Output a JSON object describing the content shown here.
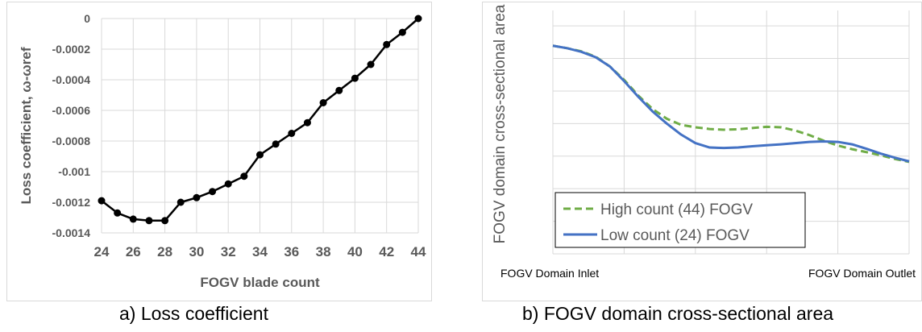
{
  "chart_data": [
    {
      "type": "line",
      "xlabel": "FOGV blade count",
      "ylabel": "Loss coefficient, ω-ωref",
      "xlim": [
        24,
        44
      ],
      "ylim": [
        -0.0014,
        0
      ],
      "xticks": [
        24,
        26,
        28,
        30,
        32,
        34,
        36,
        38,
        40,
        42,
        44
      ],
      "xtick_labels": [
        "24",
        "26",
        "28",
        "30",
        "32",
        "34",
        "36",
        "38",
        "40",
        "42",
        "44"
      ],
      "yticks": [
        0,
        -0.0002,
        -0.0004,
        -0.0006,
        -0.0008,
        -0.001,
        -0.0012,
        -0.0014
      ],
      "ytick_labels": [
        "0",
        "-0.0002",
        "-0.0004",
        "-0.0006",
        "-0.0008",
        "-0.001",
        "-0.0012",
        "-0.0014"
      ],
      "grid": true,
      "color": "#000000",
      "series": [
        {
          "x": [
            24,
            25,
            26,
            27,
            28,
            29,
            30,
            31,
            32,
            33,
            34,
            35,
            36,
            37,
            38,
            39,
            40,
            41,
            42,
            43,
            44
          ],
          "y": [
            -0.00119,
            -0.00127,
            -0.00131,
            -0.00132,
            -0.00132,
            -0.0012,
            -0.00117,
            -0.00113,
            -0.00108,
            -0.00103,
            -0.00089,
            -0.00082,
            -0.00075,
            -0.00068,
            -0.00055,
            -0.00047,
            -0.00039,
            -0.0003,
            -0.00017,
            -9e-05,
            0.0
          ]
        }
      ]
    },
    {
      "type": "line",
      "ylabel": "FOGV domain cross-sectional area",
      "xtick_labels": [
        "FOGV Domain Inlet",
        "FOGV Domain Outlet"
      ],
      "grid": true,
      "legend_position": "bottom-left",
      "series": [
        {
          "name": "High count (44) FOGV",
          "color": "#70ad47",
          "style": "dashed",
          "x": [
            0,
            0.04,
            0.08,
            0.12,
            0.16,
            0.2,
            0.24,
            0.28,
            0.32,
            0.36,
            0.4,
            0.44,
            0.48,
            0.52,
            0.56,
            0.6,
            0.64,
            0.68,
            0.72,
            0.76,
            0.8,
            0.84,
            0.88,
            0.92,
            0.96,
            1.0
          ],
          "y": [
            0.855,
            0.845,
            0.832,
            0.81,
            0.77,
            0.715,
            0.65,
            0.595,
            0.555,
            0.53,
            0.52,
            0.513,
            0.51,
            0.512,
            0.517,
            0.522,
            0.52,
            0.507,
            0.488,
            0.465,
            0.445,
            0.43,
            0.418,
            0.405,
            0.39,
            0.378
          ]
        },
        {
          "name": "Low count (24) FOGV",
          "color": "#4472c4",
          "style": "solid",
          "x": [
            0,
            0.04,
            0.08,
            0.12,
            0.16,
            0.2,
            0.24,
            0.28,
            0.32,
            0.36,
            0.4,
            0.44,
            0.48,
            0.52,
            0.56,
            0.6,
            0.64,
            0.68,
            0.72,
            0.76,
            0.8,
            0.84,
            0.88,
            0.92,
            0.96,
            1.0
          ],
          "y": [
            0.855,
            0.845,
            0.83,
            0.808,
            0.77,
            0.71,
            0.645,
            0.585,
            0.535,
            0.49,
            0.455,
            0.437,
            0.435,
            0.437,
            0.442,
            0.446,
            0.45,
            0.455,
            0.46,
            0.462,
            0.46,
            0.45,
            0.432,
            0.412,
            0.395,
            0.38
          ]
        }
      ]
    }
  ],
  "captions": {
    "a": "a) Loss coefficient",
    "b": "b) FOGV domain cross-sectional area"
  }
}
